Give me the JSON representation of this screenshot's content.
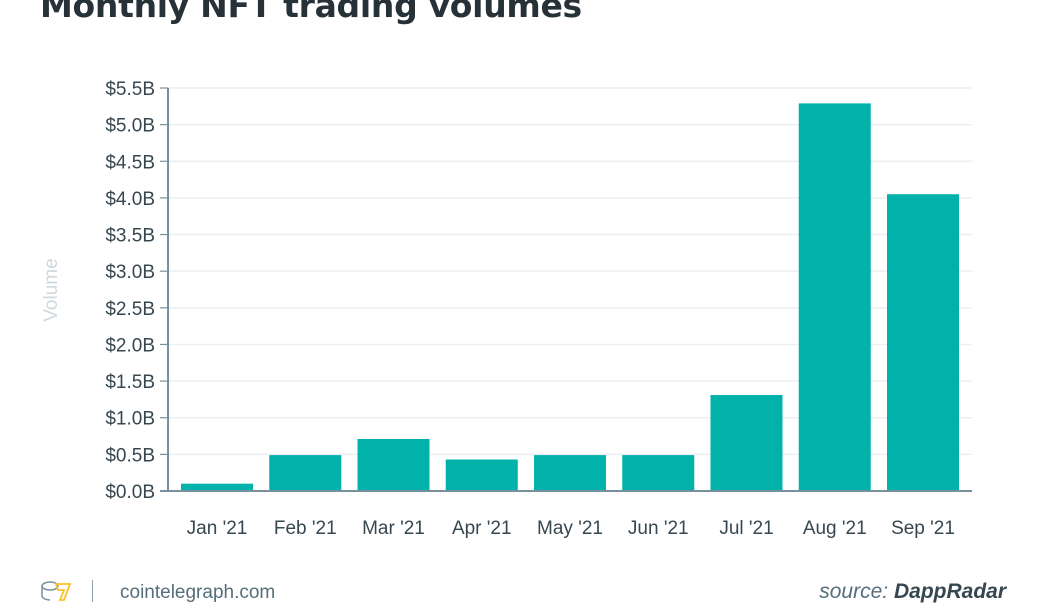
{
  "chart_data": {
    "type": "bar",
    "title": "Monthly NFT trading volumes",
    "xlabel": "",
    "ylabel": "Volume",
    "ylim": [
      0,
      5.5
    ],
    "yticks": [
      "$0.0B",
      "$0.5B",
      "$1.0B",
      "$1.5B",
      "$2.0B",
      "$2.5B",
      "$3.0B",
      "$3.5B",
      "$4.0B",
      "$4.5B",
      "$5.0B",
      "$5.5B"
    ],
    "categories": [
      "Jan '21",
      "Feb '21",
      "Mar '21",
      "Apr '21",
      "May '21",
      "Jun '21",
      "Jul '21",
      "Aug '21",
      "Sep '21"
    ],
    "values": [
      0.1,
      0.49,
      0.71,
      0.43,
      0.49,
      0.49,
      1.31,
      5.29,
      4.05
    ],
    "unit": "billion USD",
    "grid": true,
    "bar_color": "#00b2aa"
  },
  "footer": {
    "site": "cointelegraph.com",
    "source_prefix": "source:",
    "source_name": "DappRadar",
    "logo_icon": "cointelegraph-logo-icon"
  }
}
